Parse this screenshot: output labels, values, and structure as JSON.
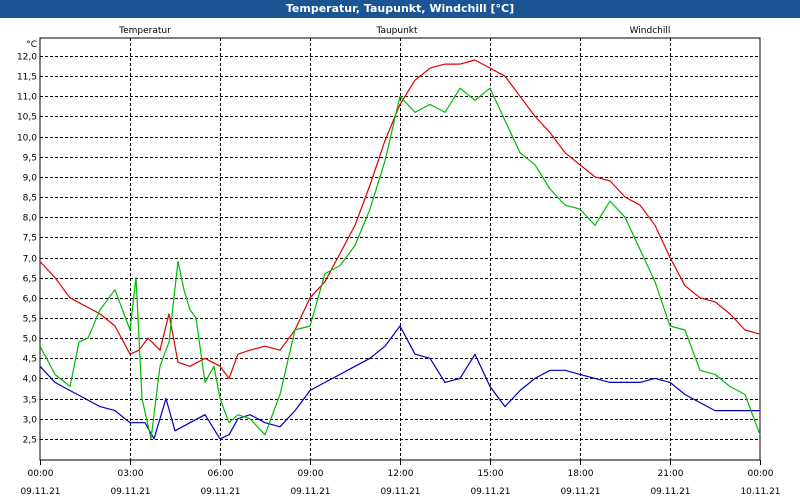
{
  "window": {
    "title": "Temperatur, Taupunkt, Windchill [°C]"
  },
  "colors": {
    "titlebar": "#1b5596",
    "Temperatur": "#dd0000",
    "Taupunkt": "#0000bb",
    "Windchill": "#00bb00",
    "grid": "#000000"
  },
  "chart_data": {
    "type": "line",
    "title": "Temperatur, Taupunkt, Windchill [°C]",
    "ylabel": "°C",
    "xlabel": "",
    "ylim": [
      2.2,
      12.3
    ],
    "xlim": [
      0,
      24
    ],
    "grid": true,
    "legend": "top",
    "y_ticks": [
      "2,5",
      "3,0",
      "3,5",
      "4,0",
      "4,5",
      "5,0",
      "5,5",
      "6,0",
      "6,5",
      "7,0",
      "7,5",
      "8,0",
      "8,5",
      "9,0",
      "9,5",
      "10,0",
      "10,5",
      "11,0",
      "11,5",
      "12,0"
    ],
    "x_ticks": [
      {
        "time": "00:00",
        "date": "09.11.21"
      },
      {
        "time": "03:00",
        "date": "09.11.21"
      },
      {
        "time": "06:00",
        "date": "09.11.21"
      },
      {
        "time": "09:00",
        "date": "09.11.21"
      },
      {
        "time": "12:00",
        "date": "09.11.21"
      },
      {
        "time": "15:00",
        "date": "09.11.21"
      },
      {
        "time": "18:00",
        "date": "09.11.21"
      },
      {
        "time": "21:00",
        "date": "09.11.21"
      },
      {
        "time": "00:00",
        "date": "10.11.21"
      }
    ],
    "series": [
      {
        "name": "Temperatur",
        "x": [
          0,
          0.5,
          1,
          1.5,
          2,
          2.5,
          3,
          3.3,
          3.6,
          4,
          4.3,
          4.6,
          5,
          5.5,
          6,
          6.3,
          6.6,
          7,
          7.5,
          8,
          8.5,
          9,
          9.5,
          10,
          10.5,
          11,
          11.5,
          12,
          12.5,
          13,
          13.5,
          14,
          14.5,
          15,
          15.5,
          16,
          16.5,
          17,
          17.5,
          18,
          18.5,
          19,
          19.5,
          20,
          20.5,
          21,
          21.5,
          22,
          22.5,
          23,
          23.5,
          24
        ],
        "y": [
          6.9,
          6.5,
          6.0,
          5.8,
          5.6,
          5.3,
          4.6,
          4.7,
          5.0,
          4.7,
          5.6,
          4.4,
          4.3,
          4.5,
          4.3,
          4.0,
          4.6,
          4.7,
          4.8,
          4.7,
          5.2,
          6.0,
          6.4,
          7.1,
          7.8,
          8.8,
          9.9,
          10.8,
          11.4,
          11.7,
          11.8,
          11.8,
          11.9,
          11.7,
          11.5,
          11.0,
          10.5,
          10.1,
          9.6,
          9.3,
          9.0,
          8.9,
          8.5,
          8.3,
          7.8,
          7.0,
          6.3,
          6.0,
          5.9,
          5.6,
          5.2,
          5.1
        ]
      },
      {
        "name": "Taupunkt",
        "x": [
          0,
          0.5,
          1,
          1.5,
          2,
          2.5,
          3,
          3.5,
          3.8,
          4.2,
          4.5,
          5,
          5.5,
          6,
          6.3,
          6.6,
          7,
          7.5,
          8,
          8.5,
          9,
          9.5,
          10,
          10.5,
          11,
          11.5,
          12,
          12.5,
          13,
          13.5,
          14,
          14.5,
          15,
          15.5,
          16,
          16.5,
          17,
          17.5,
          18,
          18.5,
          19,
          19.5,
          20,
          20.5,
          21,
          21.5,
          22,
          22.5,
          23,
          23.5,
          24
        ],
        "y": [
          4.3,
          3.9,
          3.7,
          3.5,
          3.3,
          3.2,
          2.9,
          2.9,
          2.5,
          3.5,
          2.7,
          2.9,
          3.1,
          2.5,
          2.6,
          3.0,
          3.1,
          2.9,
          2.8,
          3.2,
          3.7,
          3.9,
          4.1,
          4.3,
          4.5,
          4.8,
          5.3,
          4.6,
          4.5,
          3.9,
          4.0,
          4.6,
          3.8,
          3.3,
          3.7,
          4.0,
          4.2,
          4.2,
          4.1,
          4.0,
          3.9,
          3.9,
          3.9,
          4.0,
          3.9,
          3.6,
          3.4,
          3.2,
          3.2,
          3.2,
          3.2
        ]
      },
      {
        "name": "Windchill",
        "x": [
          0,
          0.5,
          1,
          1.3,
          1.6,
          2,
          2.5,
          3,
          3.2,
          3.4,
          3.7,
          4,
          4.3,
          4.6,
          4.8,
          5,
          5.2,
          5.5,
          5.8,
          6,
          6.3,
          6.6,
          7,
          7.5,
          8,
          8.5,
          9,
          9.5,
          10,
          10.5,
          11,
          11.5,
          12,
          12.5,
          13,
          13.5,
          14,
          14.5,
          15,
          15.5,
          16,
          16.5,
          17,
          17.5,
          18,
          18.5,
          19,
          19.5,
          20,
          20.5,
          21,
          21.5,
          22,
          22.5,
          23,
          23.5,
          24
        ],
        "y": [
          4.8,
          4.1,
          3.8,
          4.9,
          5.0,
          5.7,
          6.2,
          5.2,
          6.5,
          3.5,
          2.5,
          4.3,
          4.9,
          6.9,
          6.2,
          5.7,
          5.5,
          3.9,
          4.3,
          3.5,
          2.9,
          3.1,
          3.0,
          2.6,
          3.6,
          5.2,
          5.3,
          6.6,
          6.8,
          7.3,
          8.2,
          9.4,
          11.0,
          10.6,
          10.8,
          10.6,
          11.2,
          10.9,
          11.2,
          10.4,
          9.6,
          9.3,
          8.7,
          8.3,
          8.2,
          7.8,
          8.4,
          8.0,
          7.2,
          6.4,
          5.3,
          5.2,
          4.2,
          4.1,
          3.8,
          3.6,
          2.6
        ]
      }
    ]
  }
}
